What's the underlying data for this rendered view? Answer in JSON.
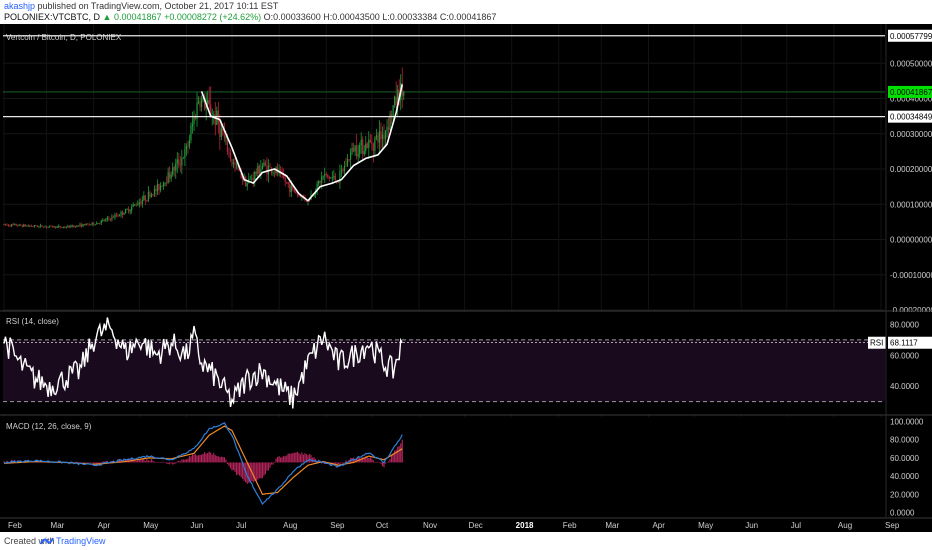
{
  "header": {
    "author": "akashjp",
    "published": "published on TradingView.com, October 21, 2017 10:11 EST",
    "ticker": "POLONIEX:VTCBTC, D",
    "ohlc_value": "0.00041867",
    "change": "+0.00008272 (+24.62%)",
    "ohlc": "O:0.00033600 H:0.00043500 L:0.00033384 C:0.00041867"
  },
  "footer": {
    "created_with": "Created with",
    "brand": "TradingView"
  },
  "colors": {
    "up": "#1e9e3a",
    "down": "#b3263a",
    "trend": "#ffffff",
    "rsi": "#ffffff",
    "rsi_band": "#1a0a1e",
    "macd": "#2f7fd8",
    "signal": "#f08a24",
    "hist": "#b0245a",
    "price_tag": "#00e000"
  },
  "chart_data": [
    {
      "type": "candlestick",
      "title": "Vertcoin / Bitcoin, D, POLONIEX",
      "x_labels": [
        "Feb",
        "Mar",
        "Apr",
        "May",
        "Jun",
        "Jul",
        "Aug",
        "Sep",
        "Oct",
        "Nov",
        "Dec",
        "2018",
        "Feb",
        "Mar",
        "Apr",
        "May",
        "Jun",
        "Jul",
        "Aug",
        "Sep"
      ],
      "x_label_bold": "2018",
      "y_ticks": [
        "0.00050000",
        "0.00040000",
        "0.00030000",
        "0.00020000",
        "0.00010000",
        "0.00000000",
        "-0.00010000",
        "-0.00020000"
      ],
      "ylim": [
        -0.0002,
        0.0006
      ],
      "horizontal_lines": [
        {
          "value": 0.00057799,
          "label": "0.00057799"
        },
        {
          "value": 0.00034849,
          "label": "0.00034849"
        }
      ],
      "last_price": {
        "value": 0.00041867,
        "label": "0.00041867"
      },
      "trend_line": {
        "days": [
          0,
          4,
          8,
          12,
          16,
          20,
          24,
          28,
          32,
          36,
          40,
          44,
          48,
          52,
          56,
          60,
          64,
          68,
          72,
          76,
          80,
          84,
          88,
          92,
          96,
          100,
          104,
          108,
          112,
          116,
          120,
          124,
          128,
          132,
          136,
          140,
          144,
          148,
          152,
          156,
          160,
          164,
          168,
          172,
          176,
          180,
          184,
          188,
          192,
          196,
          200,
          204,
          208,
          212,
          216,
          220,
          224,
          228,
          232,
          236,
          240,
          244,
          248,
          252,
          256,
          260
        ],
        "values": [
          0.00042,
          0.00038,
          0.00034,
          0.00035,
          0.0003,
          0.00023,
          0.00017,
          0.00015,
          0.00016,
          0.00019,
          0.00021,
          0.0002,
          0.00019,
          0.00016,
          0.00014,
          0.00012,
          0.0001,
          9.5e-05,
          0.00011,
          0.00014,
          0.00015,
          0.00016,
          0.00016,
          0.00016,
          0.00017,
          0.00019,
          0.00023,
          0.00024,
          0.00023,
          0.00025,
          0.00026,
          0.00031,
          0.00038,
          0.00044,
          0.00044,
          0.00044,
          0.00044,
          0.00044,
          0.00044,
          0.00044,
          0.00044,
          0.00044,
          0.00044,
          0.00044,
          0.00044,
          0.00044,
          0.00044,
          0.00044,
          0.00044,
          0.00044,
          0.00044,
          0.00044,
          0.00044,
          0.00044,
          0.00044,
          0.00044,
          0.00044,
          0.00044,
          0.00044,
          0.00044,
          0.00044,
          0.00044,
          0.00044,
          0.00044,
          0.00044,
          0.00044
        ]
      },
      "trend_points": 33,
      "candles": {
        "close_path_days": [
          0,
          20,
          40,
          60,
          70,
          80,
          90,
          100,
          110,
          120,
          128,
          133,
          140,
          150,
          160,
          170,
          180,
          190,
          200,
          210,
          220,
          230,
          240,
          250,
          260
        ],
        "close_path_values": [
          4.2e-05,
          3.8e-05,
          3.5e-05,
          4.5e-05,
          6e-05,
          8e-05,
          0.00011,
          0.00014,
          0.00019,
          0.00025,
          0.0004,
          0.00038,
          0.00034,
          0.00022,
          0.00016,
          0.00021,
          0.00019,
          0.00014,
          0.00011,
          0.00018,
          0.00017,
          0.00026,
          0.00027,
          0.0003,
          0.00042
        ]
      }
    },
    {
      "type": "line",
      "title": "RSI (14, close)",
      "y_ticks": [
        "80.0000",
        "60.0000",
        "40.0000"
      ],
      "ylim": [
        22,
        88
      ],
      "band": [
        30,
        70
      ],
      "last": {
        "label": "RSI",
        "value": "68.1117"
      }
    },
    {
      "type": "line",
      "title": "MACD (12, 26, close, 9)",
      "y_ticks": [
        "100.0000",
        "80.0000",
        "60.0000",
        "40.0000",
        "20.0000",
        "0.0000"
      ],
      "ylim": [
        -5,
        105
      ]
    }
  ]
}
